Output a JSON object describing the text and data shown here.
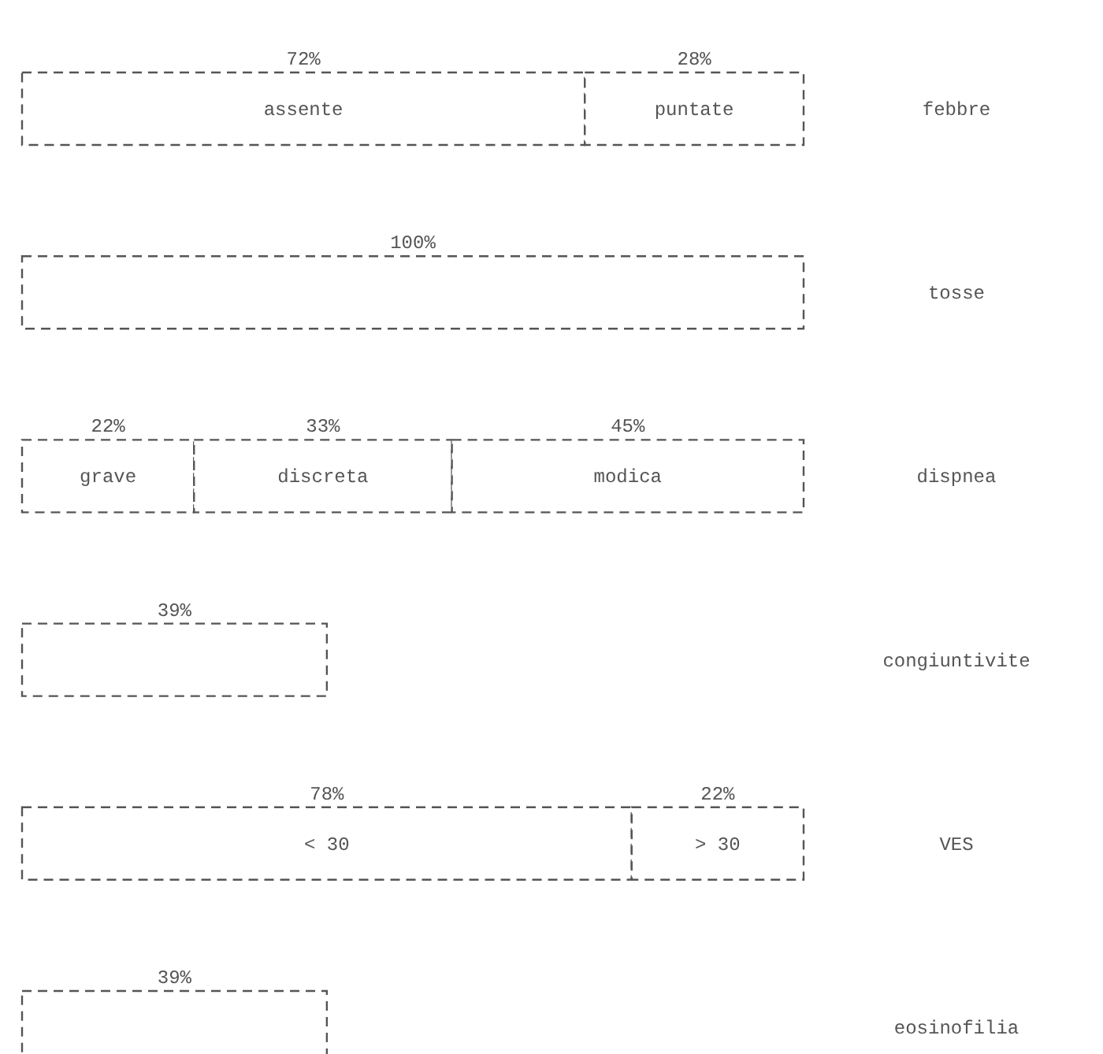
{
  "chart_data": {
    "type": "bar",
    "orientation": "horizontal",
    "stacked": true,
    "tick_labels": "y",
    "line_style": "dashed",
    "categories": [
      "febbre",
      "tosse",
      "dispnea",
      "congiuntivite",
      "VES",
      "eosinofilia"
    ],
    "series": [
      {
        "color": "#ffffff",
        "values": [
          72,
          100,
          22,
          39,
          78,
          39
        ],
        "value_labels": [
          "72%",
          "100%",
          "22%",
          "39%",
          "78%",
          "39%"
        ]
      },
      {
        "color": "#ffffff",
        "values": [
          28,
          null,
          33,
          null,
          22,
          null
        ],
        "value_labels": [
          "28%",
          null,
          "33%",
          null,
          "22%",
          null
        ]
      },
      {
        "color": "#ffffff",
        "values": [
          null,
          null,
          45,
          null,
          null,
          null
        ],
        "value_labels": [
          null,
          null,
          "45%",
          null,
          null,
          null
        ]
      }
    ],
    "annotations": [
      "assente",
      "puntate",
      "grave",
      "discreta",
      "modica",
      "< 30",
      "> 30"
    ]
  }
}
